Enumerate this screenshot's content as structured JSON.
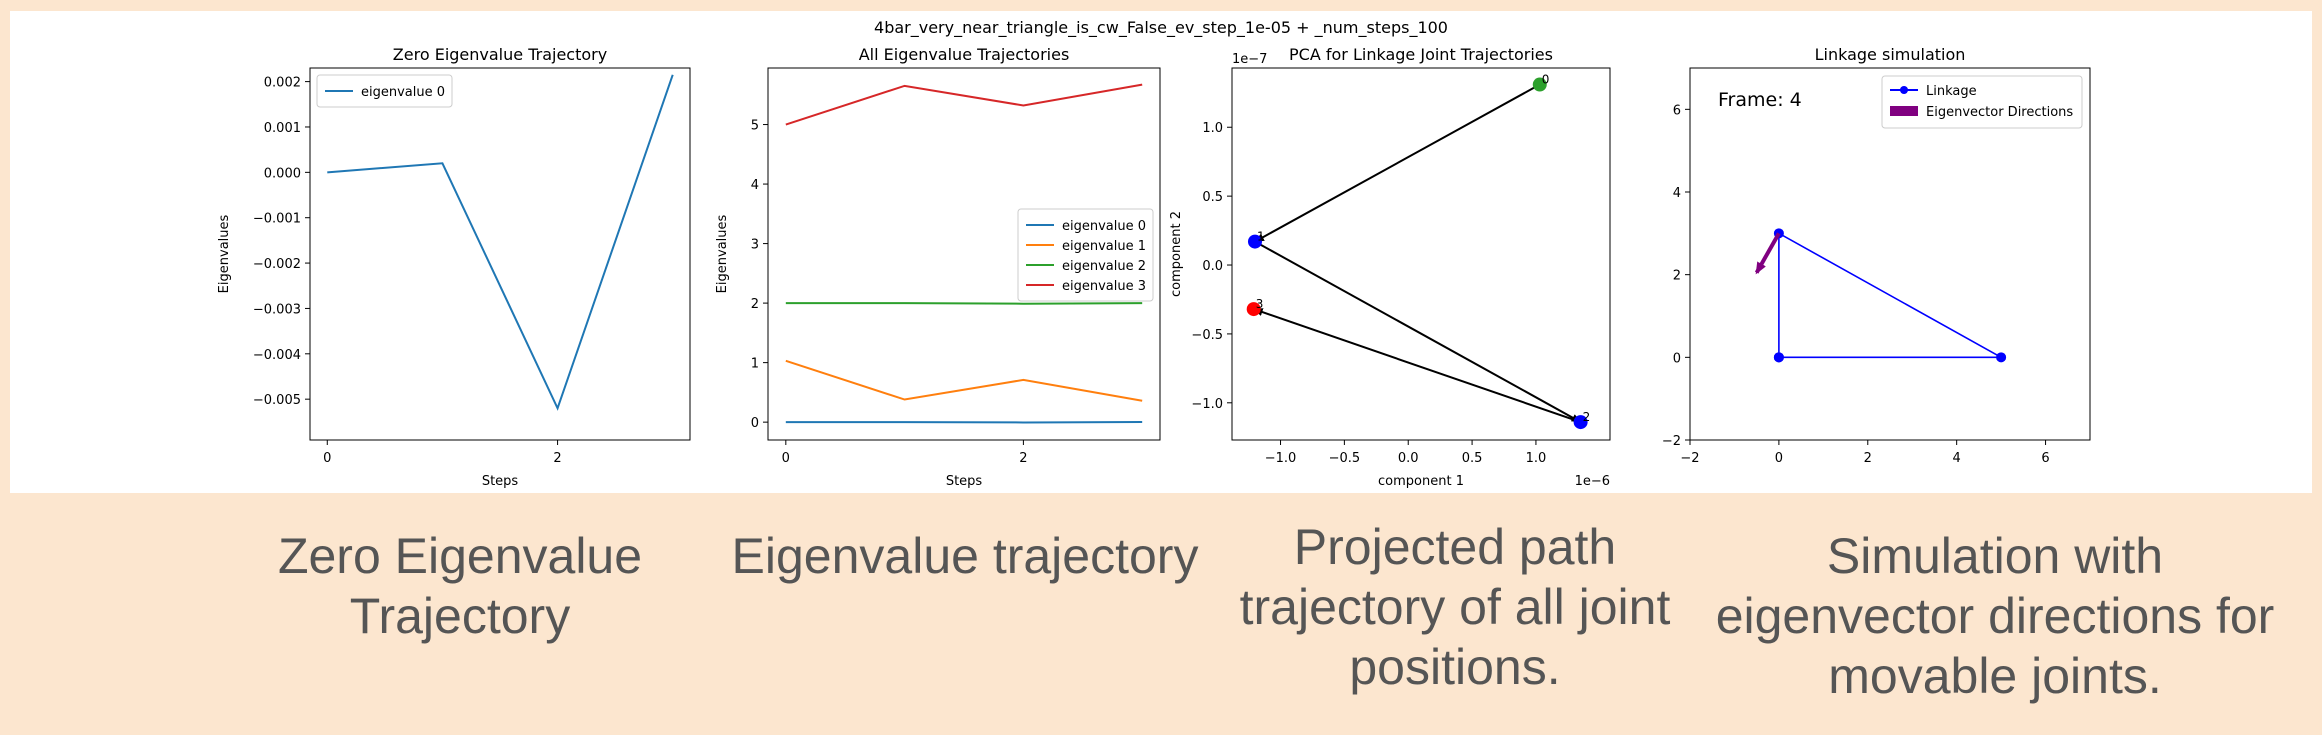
{
  "suptitle": "4bar_very_near_triangle_is_cw_False_ev_step_1e-05 + _num_steps_100",
  "captions": [
    "Zero Eigenvalue Trajectory",
    "Eigenvalue trajectory",
    "Projected path trajectory of all joint positions.",
    "Simulation with eigenvector directions for movable joints."
  ],
  "colors": {
    "c0": "#1f77b4",
    "c1": "#ff7f0e",
    "c2": "#2ca02c",
    "c3": "#d62728",
    "link": "#0000ff",
    "eig": "#800080",
    "arrow": "#000000"
  },
  "chart_data": [
    {
      "type": "line",
      "title": "Zero Eigenvalue Trajectory",
      "xlabel": "Steps",
      "ylabel": "Eigenvalues",
      "xlim": [
        -0.15,
        3.15
      ],
      "ylim": [
        -0.0059,
        0.0023
      ],
      "xticks": [
        0,
        2
      ],
      "yticks": [
        0.002,
        0.001,
        0.0,
        -0.001,
        -0.002,
        -0.003,
        -0.004,
        -0.005
      ],
      "ytick_labels": [
        "0.002",
        "0.001",
        "0.000",
        "−0.001",
        "−0.002",
        "−0.003",
        "−0.004",
        "−0.005"
      ],
      "legend": "top-left",
      "x": [
        0,
        1,
        2,
        3
      ],
      "series": [
        {
          "name": "eigenvalue 0",
          "values": [
            0.0,
            0.0002,
            -0.0052,
            0.00215
          ]
        }
      ]
    },
    {
      "type": "line",
      "title": "All Eigenvalue Trajectories",
      "xlabel": "Steps",
      "ylabel": "Eigenvalues",
      "xlim": [
        -0.15,
        3.15
      ],
      "ylim": [
        -0.3,
        5.95
      ],
      "xticks": [
        0,
        2
      ],
      "yticks": [
        0,
        1,
        2,
        3,
        4,
        5
      ],
      "legend": "center-right",
      "x": [
        0,
        1,
        2,
        3
      ],
      "series": [
        {
          "name": "eigenvalue 0",
          "values": [
            0.0,
            0.0,
            -0.005,
            0.002
          ]
        },
        {
          "name": "eigenvalue 1",
          "values": [
            1.03,
            0.38,
            0.71,
            0.36
          ]
        },
        {
          "name": "eigenvalue 2",
          "values": [
            2.0,
            2.0,
            1.99,
            2.0
          ]
        },
        {
          "name": "eigenvalue 3",
          "values": [
            5.0,
            5.65,
            5.32,
            5.67
          ]
        }
      ]
    },
    {
      "type": "scatter",
      "title": "PCA for Linkage Joint Trajectories",
      "xlabel": "component 1",
      "ylabel": "component 2",
      "x_offset_text": "1e−6",
      "y_offset_text": "1e−7",
      "xlim": [
        -1.38,
        1.58
      ],
      "ylim": [
        -1.27,
        1.43
      ],
      "xticks": [
        -1.0,
        -0.5,
        0.0,
        0.5,
        1.0
      ],
      "xtick_labels": [
        "−1.0",
        "−0.5",
        "0.0",
        "0.5",
        "1.0"
      ],
      "yticks": [
        1.0,
        0.5,
        0.0,
        -0.5,
        -1.0
      ],
      "ytick_labels": [
        "1.0",
        "0.5",
        "0.0",
        "−0.5",
        "−1.0"
      ],
      "points": [
        {
          "label": "0",
          "x": 1.03,
          "y": 1.31,
          "color": "green"
        },
        {
          "label": "1",
          "x": -1.2,
          "y": 0.17,
          "color": "blue"
        },
        {
          "label": "2",
          "x": 1.35,
          "y": -1.14,
          "color": "blue"
        },
        {
          "label": "3",
          "x": -1.21,
          "y": -0.32,
          "color": "red"
        }
      ],
      "arrows": [
        {
          "from": [
            1.03,
            1.31
          ],
          "to": [
            -1.2,
            0.17
          ]
        },
        {
          "from": [
            -1.2,
            0.17
          ],
          "to": [
            1.35,
            -1.14
          ]
        },
        {
          "from": [
            1.35,
            -1.14
          ],
          "to": [
            -1.21,
            -0.32
          ]
        }
      ]
    },
    {
      "type": "line",
      "title": "Linkage simulation",
      "frame_label": "Frame: 4",
      "xlim": [
        -2,
        7
      ],
      "ylim": [
        -2,
        7
      ],
      "xticks": [
        -2,
        0,
        2,
        4,
        6
      ],
      "xtick_labels": [
        "−2",
        "0",
        "2",
        "4",
        "6"
      ],
      "yticks": [
        -2,
        0,
        2,
        4,
        6
      ],
      "ytick_labels": [
        "−2",
        "0",
        "2",
        "4",
        "6"
      ],
      "legend": "top-right",
      "legend_entries": [
        "Linkage",
        "Eigenvector Directions"
      ],
      "linkage": {
        "x": [
          0,
          5,
          0,
          0
        ],
        "y": [
          0,
          0,
          3,
          0
        ]
      },
      "eigenvector": {
        "from": [
          0,
          3
        ],
        "to": [
          -0.5,
          2.05
        ]
      }
    }
  ]
}
